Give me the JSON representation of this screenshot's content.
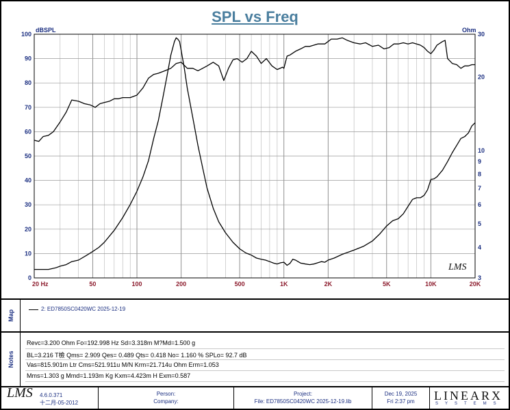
{
  "chart_data": {
    "type": "line",
    "title": "SPL vs Freq",
    "x_scale": "log",
    "xlim": [
      20,
      20000
    ],
    "x_ticks": [
      20,
      50,
      100,
      200,
      500,
      1000,
      2000,
      5000,
      10000,
      20000
    ],
    "x_tick_labels": [
      "20  Hz",
      "50",
      "100",
      "200",
      "500",
      "1K",
      "2K",
      "5K",
      "10K",
      "20K"
    ],
    "left_axis": {
      "unit": "dBSPL",
      "ylim": [
        0,
        100
      ],
      "ticks": [
        0,
        10,
        20,
        30,
        40,
        50,
        60,
        70,
        80,
        90,
        100
      ]
    },
    "right_axis": {
      "unit": "Ohm",
      "scale": "log",
      "ylim": [
        3,
        30
      ],
      "ticks": [
        3,
        4,
        5,
        6,
        7,
        8,
        9,
        10,
        20,
        30
      ]
    },
    "grid": true,
    "series": [
      {
        "axis": "left",
        "x": [
          20,
          21.5,
          23,
          25,
          27,
          30,
          33,
          36,
          40,
          44,
          48,
          52,
          56,
          60,
          65,
          70,
          75,
          80,
          90,
          100,
          110,
          120,
          130,
          140,
          155,
          170,
          185,
          200,
          220,
          240,
          260,
          280,
          300,
          330,
          360,
          390,
          420,
          450,
          480,
          520,
          560,
          600,
          650,
          700,
          760,
          830,
          900,
          980,
          1000,
          1050,
          1100,
          1200,
          1300,
          1400,
          1500,
          1700,
          1900,
          2100,
          2300,
          2500,
          2700,
          3000,
          3300,
          3600,
          4000,
          4400,
          4800,
          5200,
          5600,
          6000,
          6500,
          7000,
          7500,
          8000,
          8500,
          9000,
          9500,
          10000,
          10500,
          11000,
          12000,
          12500,
          13000,
          14000,
          15000,
          16000,
          17000,
          18000,
          19000,
          20000
        ],
        "y": [
          56.5,
          56,
          58,
          58.5,
          60,
          64,
          68,
          73,
          72.5,
          71.5,
          71,
          70,
          71.5,
          72,
          72.5,
          73.5,
          73.5,
          74,
          74,
          75,
          78,
          82,
          83.5,
          84,
          85,
          86,
          88,
          88.5,
          86,
          86,
          85,
          86,
          87,
          88.5,
          87,
          81,
          86,
          89.5,
          90,
          88.5,
          90,
          93,
          91,
          88,
          90,
          87,
          85.5,
          86.5,
          86,
          91,
          91.5,
          93,
          94,
          95,
          95,
          96,
          96,
          98,
          98,
          98.5,
          97.5,
          96.5,
          96,
          96.5,
          95,
          95.5,
          94,
          94.5,
          96,
          96,
          96.5,
          96,
          96.5,
          96,
          95.5,
          94.5,
          93,
          92,
          93.5,
          95.5,
          97,
          97.5,
          90,
          88,
          87.5,
          86,
          87,
          87,
          87.5,
          87.5
        ]
      },
      {
        "axis": "right",
        "x": [
          20,
          22,
          25,
          28,
          30,
          33,
          36,
          40,
          45,
          50,
          55,
          60,
          70,
          80,
          90,
          100,
          110,
          120,
          130,
          140,
          150,
          160,
          170,
          180,
          185,
          190,
          195,
          200,
          210,
          220,
          240,
          260,
          280,
          300,
          330,
          360,
          400,
          450,
          500,
          550,
          600,
          650,
          700,
          750,
          800,
          850,
          900,
          950,
          1000,
          1050,
          1100,
          1150,
          1200,
          1300,
          1400,
          1500,
          1600,
          1700,
          1800,
          1900,
          2000,
          2200,
          2500,
          3000,
          3500,
          4000,
          4500,
          5000,
          5500,
          6000,
          6500,
          7000,
          7500,
          8000,
          8500,
          9000,
          9500,
          10000,
          10500,
          11000,
          12000,
          13000,
          14000,
          15000,
          16000,
          17000,
          18000,
          19000,
          20000
        ],
        "y": [
          3.25,
          3.25,
          3.25,
          3.3,
          3.35,
          3.4,
          3.5,
          3.55,
          3.7,
          3.85,
          4.0,
          4.2,
          4.7,
          5.3,
          6.0,
          6.8,
          7.8,
          9.1,
          11.2,
          13.3,
          16.4,
          20.2,
          24.6,
          28.0,
          29.0,
          28.6,
          28.0,
          25.7,
          21.8,
          18.0,
          13.6,
          10.5,
          8.5,
          7.0,
          5.8,
          5.1,
          4.6,
          4.2,
          3.95,
          3.8,
          3.72,
          3.62,
          3.58,
          3.55,
          3.5,
          3.45,
          3.42,
          3.46,
          3.48,
          3.38,
          3.44,
          3.58,
          3.55,
          3.45,
          3.42,
          3.4,
          3.42,
          3.46,
          3.5,
          3.48,
          3.55,
          3.62,
          3.75,
          3.9,
          4.05,
          4.25,
          4.55,
          4.9,
          5.15,
          5.25,
          5.5,
          5.9,
          6.3,
          6.4,
          6.4,
          6.55,
          6.9,
          7.6,
          7.65,
          7.8,
          8.3,
          9.0,
          9.8,
          10.5,
          11.2,
          11.4,
          11.8,
          12.6,
          13.0
        ]
      }
    ]
  },
  "map": {
    "label": "Map",
    "legend": "2: ED7850SC0420WC 2025-12-19"
  },
  "notes": {
    "label": "Notes",
    "lines": [
      "Revc=3.200 Ohm  Fo=192.998 Hz  Sd=3.318m M?Md=1.500 g",
      "BL=3.216 T檢  Qms= 2.909  Qes= 0.489  Qts= 0.418  No= 1.160 %  SPLo= 92.7 dB",
      "Vas=815.901m Ltr  Cms=521.911u M/N  Krm=21.714u Ohm  Erm=1.053",
      "Mms=1.303 g  Mmd=1.193m Kg  Kxm=4.423m H  Exm=0.587"
    ]
  },
  "footer": {
    "logo": "LMS",
    "version": "4.6.0.371",
    "version_date": "十二月-05-2012",
    "person": "Person:",
    "company": "Company:",
    "project": "Project:",
    "project_file": "File: ED7850SC0420WC 2025-12-19.lib",
    "date": "Dec 19, 2025",
    "time": "Fri  2:37 pm",
    "brand": "LINEARX",
    "brand_sub": "SYSTEMS"
  },
  "watermark": "LMS",
  "colors": {
    "title": "#4a7e9e",
    "axis_label": "#1a2e80",
    "x_tick_label": "#8b1a2b",
    "grid": "#b4b4b4",
    "curve": "#000000"
  }
}
